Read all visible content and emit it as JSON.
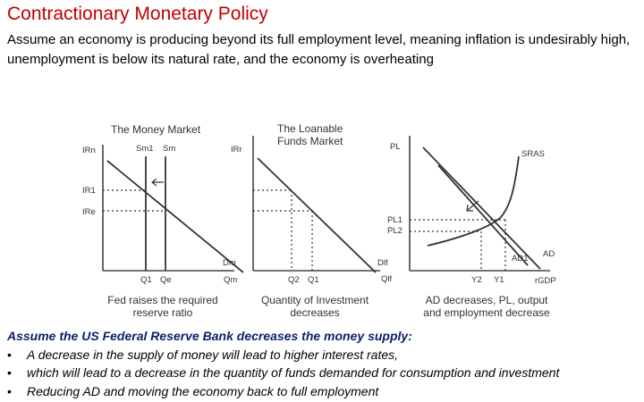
{
  "title": "Contractionary Monetary Policy",
  "intro": "Assume an economy is producing beyond its full employment level, meaning inflation is undesirably high, unemployment is below its natural rate, and the economy is overheating",
  "diagram": {
    "money_market": {
      "title": "The Money Market",
      "y_label": "IRn",
      "supply_labels": [
        "Sm1",
        "Sm"
      ],
      "rate_labels": [
        "IR1",
        "IRe"
      ],
      "demand_label": "Dm",
      "x_tick_labels": [
        "Q1",
        "Qe"
      ],
      "x_label": "Qm",
      "caption_line1": "Fed raises the required",
      "caption_line2": "reserve ratio"
    },
    "loanable_funds": {
      "title_line1": "The Loanable",
      "title_line2": "Funds Market",
      "y_label": "IRr",
      "demand_label": "Dlf",
      "x_tick_labels": [
        "Q2",
        "Q1"
      ],
      "x_label": "Qlf",
      "caption_line1": "Quantity of Investment",
      "caption_line2": "decreases"
    },
    "ad_as": {
      "y_label": "PL",
      "sras_label": "SRAS",
      "price_labels": [
        "PL1",
        "PL2"
      ],
      "ad_labels": [
        "AD",
        "AD1"
      ],
      "x_tick_labels": [
        "Y2",
        "Y1"
      ],
      "x_label": "rGDP",
      "caption_line1": "AD decreases, PL, output",
      "caption_line2": "and employment decrease"
    }
  },
  "bottom": {
    "heading": "Assume the US Federal Reserve Bank decreases the money supply:",
    "bullet_symbol": "•",
    "bullets": [
      "A decrease in the supply of money will lead to higher interest rates,",
      "which will lead to a decrease in the quantity of funds demanded for consumption and investment",
      "Reducing AD and moving the economy back to full employment"
    ]
  }
}
